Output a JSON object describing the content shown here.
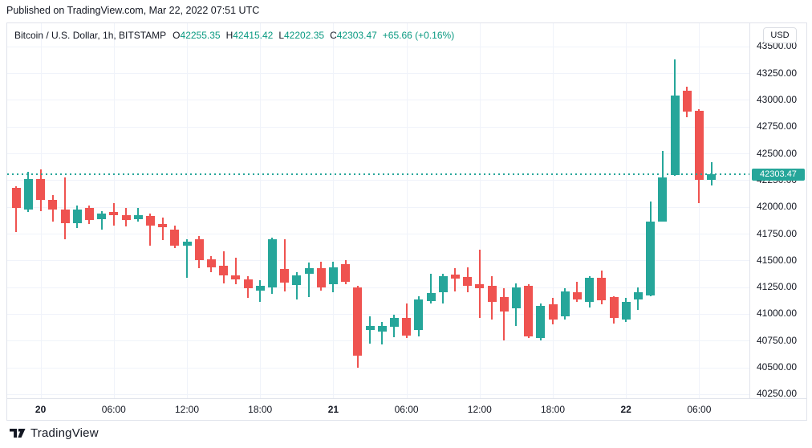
{
  "page": {
    "published_line": "Published on TradingView.com, Mar 22, 2022 07:51 UTC"
  },
  "branding": {
    "logo_text": "TradingView"
  },
  "legend": {
    "symbol_title": "Bitcoin / U.S. Dollar, 1h, BITSTAMP",
    "ohlc": [
      {
        "label": "O",
        "value": "42255.35"
      },
      {
        "label": "H",
        "value": "42415.42"
      },
      {
        "label": "L",
        "value": "42202.35"
      },
      {
        "label": "C",
        "value": "42303.47"
      }
    ],
    "change_text": "+65.66 (+0.16%)"
  },
  "price_axis": {
    "currency_label": "USD",
    "last_price_label": "42303.47"
  },
  "colors": {
    "up": "#26a69a",
    "down": "#ef5350",
    "text": "#131722",
    "value_text": "#089981",
    "grid": "#f0f3fa",
    "axis_border": "#e0e3eb",
    "last_price_line": "#26a69a",
    "last_price_badge": "#26a69a"
  },
  "chart_data": {
    "type": "candlestick",
    "title": "Bitcoin / U.S. Dollar, 1h, BITSTAMP",
    "symbol": "Bitcoin / U.S. Dollar",
    "exchange": "BITSTAMP",
    "interval": "1h",
    "ohlc_header": {
      "open": 42255.35,
      "high": 42415.42,
      "low": 42202.35,
      "close": 42303.47,
      "change": 65.66,
      "change_pct": 0.16
    },
    "last_price": 42303.47,
    "y_axis": {
      "unit": "USD",
      "price_top": 43715,
      "price_bottom": 40212,
      "gridline_prices": [
        43500,
        43250,
        43000,
        42750,
        42500,
        42250,
        42000,
        41750,
        41500,
        41250,
        41000,
        40750,
        40500,
        40250
      ]
    },
    "x_axis": {
      "start": "2022-03-19 22:00 UTC",
      "interval_hours": 1,
      "ticks": [
        {
          "index": 2,
          "label": "20",
          "major": true
        },
        {
          "index": 8,
          "label": "06:00",
          "major": false
        },
        {
          "index": 14,
          "label": "12:00",
          "major": false
        },
        {
          "index": 20,
          "label": "18:00",
          "major": false
        },
        {
          "index": 26,
          "label": "21",
          "major": true
        },
        {
          "index": 32,
          "label": "06:00",
          "major": false
        },
        {
          "index": 38,
          "label": "12:00",
          "major": false
        },
        {
          "index": 44,
          "label": "18:00",
          "major": false
        },
        {
          "index": 50,
          "label": "22",
          "major": true
        },
        {
          "index": 56,
          "label": "06:00",
          "major": false
        }
      ]
    },
    "candles": [
      [
        42177,
        42192,
        41765,
        41990
      ],
      [
        41975,
        42327,
        41952,
        42260
      ],
      [
        42260,
        42350,
        41960,
        42065
      ],
      [
        42065,
        42110,
        41862,
        41975
      ],
      [
        41975,
        42275,
        41697,
        41847
      ],
      [
        41847,
        42012,
        41802,
        41975
      ],
      [
        41990,
        42012,
        41840,
        41877
      ],
      [
        41885,
        41960,
        41787,
        41937
      ],
      [
        41952,
        42035,
        41825,
        41922
      ],
      [
        41922,
        41990,
        41817,
        41877
      ],
      [
        41885,
        41990,
        41862,
        41922
      ],
      [
        41915,
        41937,
        41637,
        41825
      ],
      [
        41840,
        41900,
        41690,
        41810
      ],
      [
        41787,
        41825,
        41615,
        41637
      ],
      [
        41637,
        41697,
        41337,
        41675
      ],
      [
        41700,
        41727,
        41427,
        41502
      ],
      [
        41510,
        41540,
        41390,
        41435
      ],
      [
        41450,
        41585,
        41285,
        41360
      ],
      [
        41360,
        41525,
        41277,
        41322
      ],
      [
        41322,
        41352,
        41150,
        41240
      ],
      [
        41217,
        41315,
        41112,
        41262
      ],
      [
        41247,
        41712,
        41187,
        41697
      ],
      [
        41417,
        41697,
        41212,
        41292
      ],
      [
        41270,
        41390,
        41135,
        41360
      ],
      [
        41375,
        41480,
        41157,
        41430
      ],
      [
        41430,
        41487,
        41217,
        41250
      ],
      [
        41280,
        41487,
        41205,
        41437
      ],
      [
        41462,
        41500,
        41275,
        41300
      ],
      [
        41247,
        41260,
        40500,
        40612
      ],
      [
        40850,
        40977,
        40725,
        40887
      ],
      [
        40838,
        40925,
        40715,
        40888
      ],
      [
        40880,
        40990,
        40780,
        40960
      ],
      [
        40962,
        41100,
        40775,
        40800
      ],
      [
        40850,
        41165,
        40790,
        41137
      ],
      [
        41118,
        41375,
        41100,
        41193
      ],
      [
        41200,
        41375,
        41100,
        41355
      ],
      [
        41367,
        41430,
        41212,
        41330
      ],
      [
        41345,
        41437,
        41200,
        41262
      ],
      [
        41280,
        41600,
        40960,
        41237
      ],
      [
        41262,
        41350,
        40950,
        41112
      ],
      [
        41155,
        41237,
        40750,
        41025
      ],
      [
        41050,
        41287,
        40887,
        41250
      ],
      [
        41262,
        41275,
        40775,
        40787
      ],
      [
        40775,
        41100,
        40755,
        41075
      ],
      [
        41087,
        41150,
        40900,
        40950
      ],
      [
        40975,
        41240,
        40950,
        41212
      ],
      [
        41200,
        41300,
        41112,
        41137
      ],
      [
        41112,
        41350,
        41062,
        41337
      ],
      [
        41337,
        41405,
        41090,
        41125
      ],
      [
        41155,
        41162,
        40912,
        40962
      ],
      [
        40950,
        41150,
        40925,
        41112
      ],
      [
        41137,
        41250,
        41037,
        41200
      ],
      [
        41175,
        42050,
        41162,
        41862
      ],
      [
        41862,
        42525,
        41860,
        42275
      ],
      [
        42300,
        43375,
        42287,
        43037
      ],
      [
        43087,
        43125,
        42837,
        42887
      ],
      [
        42900,
        42912,
        42037,
        42250
      ],
      [
        42255.35,
        42415.42,
        42202.35,
        42303.47
      ]
    ]
  }
}
